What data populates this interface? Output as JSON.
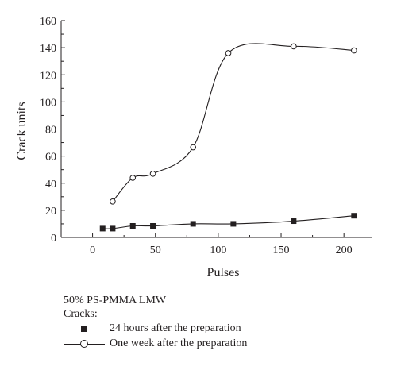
{
  "chart_data": {
    "type": "line",
    "xlabel": "Pulses",
    "ylabel": "Crack units",
    "xlim": [
      -25,
      222
    ],
    "ylim": [
      0,
      160
    ],
    "xticks": [
      0,
      50,
      100,
      150,
      200
    ],
    "yticks": [
      0,
      20,
      40,
      60,
      80,
      100,
      120,
      140,
      160
    ],
    "grid": false,
    "legend_position": "bottom",
    "series": [
      {
        "name": "24 hours after the preparation",
        "marker": "filled-square",
        "color": "#231f20",
        "x": [
          8,
          16,
          32,
          48,
          80,
          112,
          160,
          208
        ],
        "y": [
          6.5,
          6.5,
          8.5,
          8.5,
          10,
          10,
          12,
          16
        ]
      },
      {
        "name": "One week after the preparation",
        "marker": "open-circle",
        "color": "#231f20",
        "x": [
          16,
          32,
          48,
          80,
          108,
          160,
          208
        ],
        "y": [
          26.5,
          44,
          47,
          66.5,
          136,
          141,
          138
        ]
      }
    ]
  },
  "legend": {
    "title": "50% PS-PMMA LMW",
    "subtitle": "Cracks:"
  }
}
